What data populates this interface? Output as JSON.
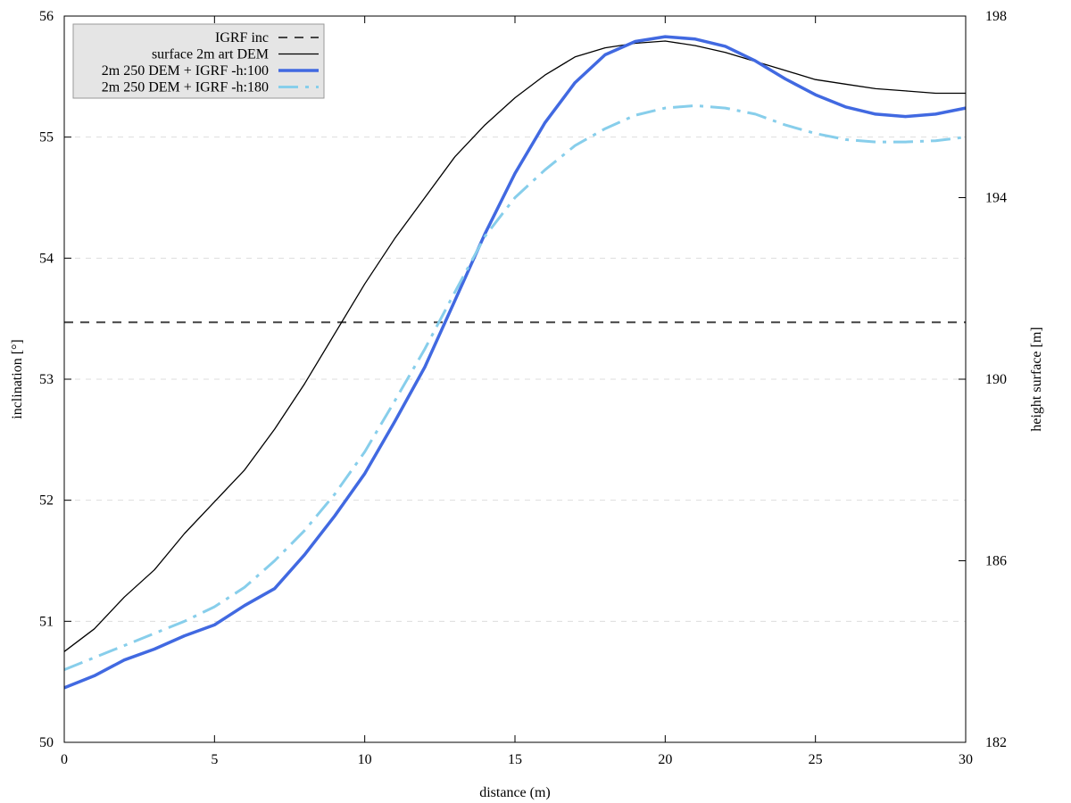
{
  "chart_data": {
    "type": "line",
    "xlabel": "distance (m)",
    "ylabel": "inclination [°]",
    "y2label": "height surface [m]",
    "xlim": [
      0,
      30
    ],
    "ylim": [
      50,
      56
    ],
    "y2lim": [
      182,
      198
    ],
    "xticks": [
      0,
      5,
      10,
      15,
      20,
      25,
      30
    ],
    "yticks": [
      50,
      51,
      52,
      53,
      54,
      55,
      56
    ],
    "y2ticks": [
      182,
      186,
      190,
      194,
      198
    ],
    "grid": "horizontal dashed",
    "legend_position": "top-left",
    "colors": {
      "igrf": "#444444",
      "surface": "#000000",
      "h100": "#4169e1",
      "h180": "#87ceeb",
      "grid": "#dddddd",
      "legend_bg": "#e5e5e5"
    },
    "series": [
      {
        "name": "IGRF inc",
        "axis": "left",
        "style": "dashed",
        "x": [
          0,
          30
        ],
        "y": [
          53.47,
          53.47
        ]
      },
      {
        "name": "surface 2m art DEM",
        "axis": "right",
        "style": "solid-thin",
        "x": [
          0,
          1,
          2,
          3,
          4,
          5,
          6,
          7,
          8,
          9,
          10,
          11,
          12,
          13,
          14,
          15,
          16,
          17,
          18,
          19,
          20,
          21,
          22,
          23,
          24,
          25,
          26,
          27,
          28,
          29,
          30
        ],
        "y": [
          184.0,
          184.5,
          185.2,
          185.8,
          186.6,
          187.3,
          188.0,
          188.9,
          189.9,
          191.0,
          192.1,
          193.1,
          194.0,
          194.9,
          195.6,
          196.2,
          196.7,
          197.1,
          197.3,
          197.4,
          197.45,
          197.35,
          197.2,
          197.0,
          196.8,
          196.6,
          196.5,
          196.4,
          196.35,
          196.3,
          196.3
        ]
      },
      {
        "name": "2m 250 DEM + IGRF -h:100",
        "axis": "left",
        "style": "solid-thick",
        "x": [
          0,
          1,
          2,
          3,
          4,
          5,
          6,
          7,
          8,
          9,
          10,
          11,
          12,
          13,
          14,
          15,
          16,
          17,
          18,
          19,
          20,
          21,
          22,
          23,
          24,
          25,
          26,
          27,
          28,
          29,
          30
        ],
        "y": [
          50.45,
          50.55,
          50.68,
          50.77,
          50.88,
          50.97,
          51.13,
          51.27,
          51.55,
          51.87,
          52.22,
          52.65,
          53.1,
          53.65,
          54.2,
          54.7,
          55.12,
          55.45,
          55.68,
          55.79,
          55.83,
          55.81,
          55.75,
          55.63,
          55.48,
          55.35,
          55.25,
          55.19,
          55.17,
          55.19,
          55.24
        ]
      },
      {
        "name": "2m 250 DEM + IGRF -h:180",
        "axis": "left",
        "style": "dash-dot",
        "x": [
          0,
          1,
          2,
          3,
          4,
          5,
          6,
          7,
          8,
          9,
          10,
          11,
          12,
          13,
          14,
          15,
          16,
          17,
          18,
          19,
          20,
          21,
          22,
          23,
          24,
          25,
          26,
          27,
          28,
          29,
          30
        ],
        "y": [
          50.6,
          50.7,
          50.8,
          50.9,
          51.0,
          51.12,
          51.28,
          51.5,
          51.75,
          52.05,
          52.4,
          52.82,
          53.25,
          53.72,
          54.18,
          54.5,
          54.73,
          54.93,
          55.07,
          55.18,
          55.24,
          55.26,
          55.24,
          55.19,
          55.1,
          55.03,
          54.98,
          54.96,
          54.96,
          54.97,
          55.0
        ]
      }
    ]
  }
}
